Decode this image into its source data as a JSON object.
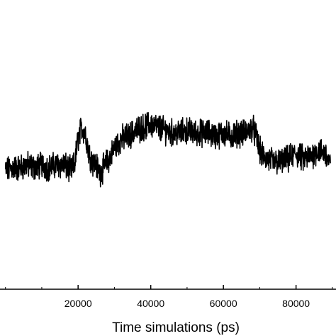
{
  "chart_data": {
    "type": "line",
    "title": "",
    "xlabel": "Time simulations (ps)",
    "ylabel": "",
    "xlim": [
      -1500,
      91000
    ],
    "ylim": [
      0,
      1
    ],
    "x_ticks": [
      {
        "value": 20000,
        "label": "20000"
      },
      {
        "value": 40000,
        "label": "40000"
      },
      {
        "value": 60000,
        "label": "60000"
      },
      {
        "value": 80000,
        "label": "80000"
      }
    ],
    "grid": false,
    "line_color": "#000000",
    "series": [
      {
        "x": [
          0,
          2000,
          4000,
          6000,
          8000,
          10000,
          12000,
          14000,
          16000,
          18000,
          19000,
          20000,
          21000,
          22000,
          23000,
          24000,
          25000,
          26000,
          27000,
          28000,
          29000,
          30000,
          32000,
          34000,
          36000,
          38000,
          40000,
          42000,
          44000,
          46000,
          48000,
          50000,
          52000,
          54000,
          56000,
          58000,
          60000,
          62000,
          64000,
          66000,
          68000,
          69000,
          70000,
          71000,
          72000,
          74000,
          76000,
          78000,
          80000,
          82000,
          84000,
          86000,
          88000,
          89500
        ],
        "y": [
          0.41,
          0.42,
          0.42,
          0.43,
          0.42,
          0.43,
          0.42,
          0.43,
          0.43,
          0.41,
          0.43,
          0.52,
          0.56,
          0.54,
          0.47,
          0.44,
          0.43,
          0.4,
          0.42,
          0.44,
          0.46,
          0.49,
          0.52,
          0.53,
          0.55,
          0.56,
          0.57,
          0.56,
          0.55,
          0.54,
          0.54,
          0.55,
          0.54,
          0.54,
          0.54,
          0.53,
          0.54,
          0.53,
          0.54,
          0.54,
          0.56,
          0.53,
          0.48,
          0.46,
          0.45,
          0.44,
          0.44,
          0.45,
          0.47,
          0.45,
          0.46,
          0.48,
          0.47,
          0.43
        ]
      }
    ]
  }
}
